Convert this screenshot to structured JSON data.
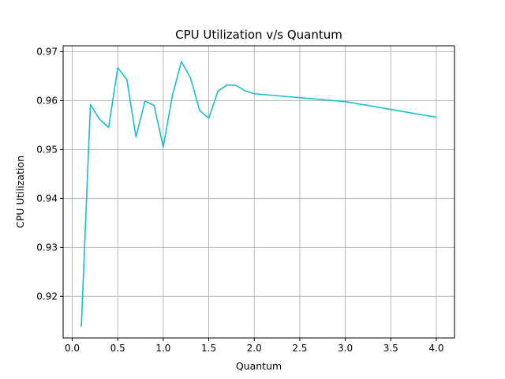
{
  "chart_data": {
    "type": "line",
    "title": "CPU Utilization v/s Quantum",
    "xlabel": "Quantum",
    "ylabel": "CPU Utilization",
    "xlim": [
      -0.1,
      4.2
    ],
    "ylim": [
      0.9115,
      0.9712
    ],
    "xticks": [
      0.0,
      0.5,
      1.0,
      1.5,
      2.0,
      2.5,
      3.0,
      3.5,
      4.0
    ],
    "xtick_labels": [
      "0.0",
      "0.5",
      "1.0",
      "1.5",
      "2.0",
      "2.5",
      "3.0",
      "3.5",
      "4.0"
    ],
    "yticks": [
      0.92,
      0.93,
      0.94,
      0.95,
      0.96,
      0.97
    ],
    "ytick_labels": [
      "0.92",
      "0.93",
      "0.94",
      "0.95",
      "0.96",
      "0.97"
    ],
    "grid": true,
    "legend": "none",
    "series": [
      {
        "color": "#17becf",
        "x": [
          0.1,
          0.2,
          0.3,
          0.4,
          0.5,
          0.6,
          0.7,
          0.8,
          0.9,
          1.0,
          1.1,
          1.2,
          1.3,
          1.4,
          1.5,
          1.6,
          1.7,
          1.8,
          1.9,
          2.0,
          3.0,
          4.0
        ],
        "y": [
          0.9138,
          0.9592,
          0.9562,
          0.9545,
          0.9667,
          0.9643,
          0.9526,
          0.9599,
          0.959,
          0.9505,
          0.961,
          0.968,
          0.9646,
          0.958,
          0.9564,
          0.9619,
          0.9632,
          0.9631,
          0.962,
          0.9614,
          0.9598,
          0.9566
        ]
      }
    ]
  }
}
